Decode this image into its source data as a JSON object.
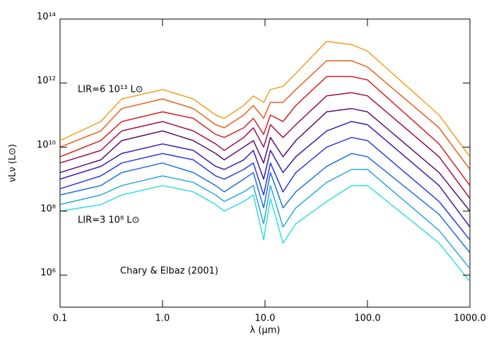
{
  "chart_data": {
    "type": "line",
    "xscale": "log",
    "yscale": "log",
    "x_label": "λ (μm)",
    "y_label": "νLν (L⊙)",
    "xlim": [
      0.1,
      1000
    ],
    "ylim": [
      100000,
      100000000000000
    ],
    "xticks": [
      0.1,
      {
        "value": 1,
        "label": "1.0"
      },
      {
        "value": 10,
        "label": "10.0"
      },
      {
        "value": 100,
        "label": "100.0"
      },
      {
        "value": 1000,
        "label": "1000.0"
      }
    ],
    "yticks": [
      {
        "value": 1000000,
        "label": "10⁶"
      },
      {
        "value": 100000000,
        "label": "10⁸"
      },
      {
        "value": 10000000000,
        "label": "10¹⁰"
      },
      {
        "value": 1000000000000,
        "label": "10¹²"
      },
      {
        "value": 100000000000000,
        "label": "10¹⁴"
      }
    ],
    "annotations": [
      {
        "text": "LIR=6 10¹³ L⊙",
        "color": "#f0a020"
      },
      {
        "text": "LIR=3 10⁸ L⊙",
        "color": "#30e0d8"
      },
      {
        "text": "Chary & Elbaz (2001)",
        "color": "#000000"
      }
    ],
    "x": [
      0.1,
      0.25,
      0.4,
      1,
      2,
      3.3,
      4,
      6.2,
      7.7,
      9.7,
      11.3,
      15,
      20,
      40,
      70,
      100,
      500,
      1000
    ],
    "series": [
      {
        "color": "#f0a020",
        "values": [
          16000000000.0,
          63000000000.0,
          320000000000.0,
          630000000000.0,
          320000000000.0,
          100000000000.0,
          79000000000.0,
          200000000000.0,
          400000000000.0,
          250000000000.0,
          630000000000.0,
          790000000000.0,
          2000000000000.0,
          20000000000000.0,
          16000000000000.0,
          10000000000000.0,
          100000000000.0,
          5000000000.0
        ]
      },
      {
        "color": "#e8601c",
        "values": [
          10000000000.0,
          32000000000.0,
          160000000000.0,
          320000000000.0,
          160000000000.0,
          50000000000.0,
          40000000000.0,
          100000000000.0,
          200000000000.0,
          79000000000.0,
          250000000000.0,
          250000000000.0,
          630000000000.0,
          5000000000000.0,
          5000000000000.0,
          3200000000000.0,
          40000000000.0,
          2000000000.0
        ]
      },
      {
        "color": "#d62020",
        "values": [
          5000000000.0,
          16000000000.0,
          63000000000.0,
          126000000000.0,
          79000000000.0,
          25000000000.0,
          20000000000.0,
          40000000000.0,
          79000000000.0,
          25000000000.0,
          100000000000.0,
          63000000000.0,
          200000000000.0,
          1600000000000.0,
          1600000000000.0,
          1260000000000.0,
          12600000000.0,
          630000000.0
        ]
      },
      {
        "color": "#a01048",
        "values": [
          3200000000.0,
          7900000000.0,
          32000000000.0,
          63000000000.0,
          32000000000.0,
          12600000000.0,
          7900000000.0,
          20000000000.0,
          40000000000.0,
          10000000000.0,
          50000000000.0,
          20000000000.0,
          50000000000.0,
          400000000000.0,
          500000000000.0,
          400000000000.0,
          5000000000.0,
          250000000.0
        ]
      },
      {
        "color": "#5a1070",
        "values": [
          1600000000.0,
          4000000000.0,
          16000000000.0,
          32000000000.0,
          16000000000.0,
          6300000000.0,
          4000000000.0,
          10000000000.0,
          16000000000.0,
          3200000000.0,
          20000000000.0,
          5000000000.0,
          16000000000.0,
          126000000000.0,
          160000000000.0,
          126000000000.0,
          1600000000.0,
          100000000.0
        ]
      },
      {
        "color": "#3a1ab0",
        "values": [
          1000000000.0,
          2500000000.0,
          6300000000.0,
          12600000000.0,
          7900000000.0,
          2500000000.0,
          2000000000.0,
          4000000000.0,
          7900000000.0,
          1000000000.0,
          7900000000.0,
          1600000000.0,
          5000000000.0,
          32000000000.0,
          63000000000.0,
          50000000000.0,
          630000000.0,
          32000000.0
        ]
      },
      {
        "color": "#2a3ae0",
        "values": [
          500000000.0,
          1260000000.0,
          3200000000.0,
          6300000000.0,
          4000000000.0,
          1260000000.0,
          1000000000.0,
          2000000000.0,
          3200000000.0,
          320000000.0,
          3200000000.0,
          400000000.0,
          1600000000.0,
          10000000000.0,
          20000000000.0,
          16000000000.0,
          200000000.0,
          12600000.0
        ]
      },
      {
        "color": "#2070e0",
        "values": [
          320000000.0,
          630000000.0,
          1600000000.0,
          3200000000.0,
          1600000000.0,
          630000000.0,
          400000000.0,
          1000000000.0,
          1600000000.0,
          126000000.0,
          1600000000.0,
          126000000.0,
          400000000.0,
          2500000000.0,
          6300000000.0,
          5000000000.0,
          79000000.0,
          5000000.0
        ]
      },
      {
        "color": "#28a8e0",
        "values": [
          160000000.0,
          320000000.0,
          630000000.0,
          1260000000.0,
          790000000.0,
          320000000.0,
          200000000.0,
          400000000.0,
          630000000.0,
          40000000.0,
          630000000.0,
          32000000.0,
          126000000.0,
          790000000.0,
          2000000000.0,
          2000000000.0,
          25000000.0,
          1600000.0
        ]
      },
      {
        "color": "#30e0d8",
        "values": [
          100000000.0,
          160000000.0,
          320000000.0,
          630000000.0,
          400000000.0,
          160000000.0,
          100000000.0,
          200000000.0,
          320000000.0,
          12600000.0,
          250000000.0,
          10000000.0,
          40000000.0,
          200000000.0,
          630000000.0,
          630000000.0,
          10000000.0,
          630000.0
        ]
      }
    ]
  }
}
